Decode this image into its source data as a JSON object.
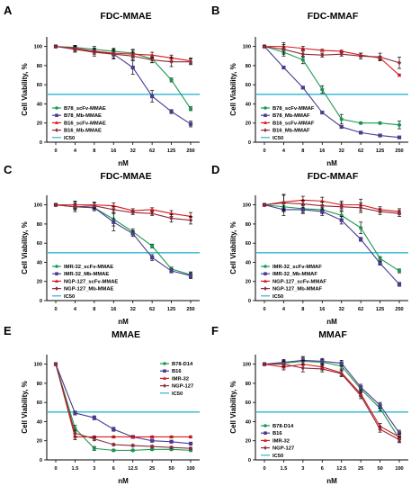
{
  "panels": [
    {
      "label": "A",
      "title": "FDC-MMAE",
      "xlabel": "nM",
      "ylabel": "Cell Viability, %",
      "chart_data": {
        "type": "line",
        "x": [
          "0",
          "4",
          "8",
          "16",
          "32",
          "62",
          "125",
          "250"
        ],
        "ylim": [
          0,
          110
        ],
        "yticks": [
          0,
          20,
          40,
          60,
          80,
          100
        ],
        "reference": {
          "name": "IC50",
          "value": 50,
          "color": "#29b6d2"
        },
        "legend_position": "bottom-left",
        "series": [
          {
            "name": "B78_scFv-MMAE",
            "color": "#1a9850",
            "values": [
              100,
              99,
              97,
              95,
              93,
              87,
              65,
              35
            ],
            "errors": [
              1,
              2,
              3,
              3,
              4,
              4,
              2,
              2
            ]
          },
          {
            "name": "B78_Mb-MMAE",
            "color": "#4b3b8f",
            "values": [
              100,
              98,
              95,
              92,
              78,
              48,
              32,
              19
            ],
            "errors": [
              1,
              2,
              3,
              4,
              7,
              6,
              2,
              3
            ]
          },
          {
            "name": "B16_scFv-MMAE",
            "color": "#d7191c",
            "values": [
              100,
              98,
              95,
              93,
              92,
              91,
              88,
              85
            ],
            "errors": [
              1,
              3,
              3,
              3,
              4,
              3,
              3,
              3
            ]
          },
          {
            "name": "B16_Mb-MMAE",
            "color": "#8e2b3a",
            "values": [
              100,
              97,
              94,
              92,
              90,
              86,
              84,
              84
            ],
            "errors": [
              1,
              3,
              4,
              5,
              4,
              3,
              5,
              3
            ]
          }
        ]
      }
    },
    {
      "label": "B",
      "title": "FDC-MMAF",
      "xlabel": "nM",
      "ylabel": "Cell Viability, %",
      "chart_data": {
        "type": "line",
        "x": [
          "0",
          "4",
          "8",
          "16",
          "32",
          "62",
          "125",
          "250"
        ],
        "ylim": [
          0,
          110
        ],
        "yticks": [
          0,
          20,
          40,
          60,
          80,
          100
        ],
        "reference": {
          "name": "IC50",
          "value": 50,
          "color": "#29b6d2"
        },
        "legend_position": "bottom-left",
        "series": [
          {
            "name": "B78_scFv-MMAF",
            "color": "#1a9850",
            "values": [
              100,
              94,
              86,
              55,
              24,
              20,
              20,
              18
            ],
            "errors": [
              1,
              4,
              4,
              4,
              5,
              1,
              1,
              4
            ]
          },
          {
            "name": "B78_Mb-MMAF",
            "color": "#4b3b8f",
            "values": [
              100,
              78,
              57,
              31,
              16,
              10,
              7,
              5
            ],
            "errors": [
              1,
              1,
              1,
              1,
              1,
              1,
              1,
              1
            ]
          },
          {
            "name": "B16_scFv-MMAF",
            "color": "#d7191c",
            "values": [
              100,
              100,
              98,
              96,
              95,
              91,
              88,
              70
            ],
            "errors": [
              1,
              4,
              2,
              1,
              1,
              2,
              2,
              1
            ]
          },
          {
            "name": "B16_Mb-MMAF",
            "color": "#8e2b3a",
            "values": [
              100,
              97,
              92,
              91,
              92,
              90,
              89,
              83
            ],
            "errors": [
              1,
              5,
              3,
              2,
              2,
              3,
              4,
              6
            ]
          }
        ]
      }
    },
    {
      "label": "C",
      "title": "FDC-MMAE",
      "xlabel": "nM",
      "ylabel": "Cell Viability, %",
      "chart_data": {
        "type": "line",
        "x": [
          "0",
          "4",
          "8",
          "16",
          "32",
          "62",
          "125",
          "250"
        ],
        "ylim": [
          0,
          110
        ],
        "yticks": [
          0,
          20,
          40,
          60,
          80,
          100
        ],
        "reference": {
          "name": "IC50",
          "value": 50,
          "color": "#29b6d2"
        },
        "legend_position": "bottom-left",
        "series": [
          {
            "name": "IMR-32_scFv-MMAE",
            "color": "#1a9850",
            "values": [
              100,
              98,
              97,
              85,
              72,
              57,
              33,
              27
            ],
            "errors": [
              1,
              3,
              3,
              7,
              3,
              2,
              2,
              3
            ]
          },
          {
            "name": "IMR-32_Mb-MMAE",
            "color": "#4b3b8f",
            "values": [
              100,
              98,
              97,
              82,
              70,
              45,
              31,
              26
            ],
            "errors": [
              1,
              3,
              3,
              9,
              3,
              3,
              2,
              3
            ]
          },
          {
            "name": "NGP-127_scFv-MMAE",
            "color": "#d7191c",
            "values": [
              100,
              100,
              100,
              99,
              94,
              95,
              91,
              88
            ],
            "errors": [
              1,
              4,
              3,
              3,
              2,
              2,
              3,
              4
            ]
          },
          {
            "name": "NGP-127_Mb-MMAE",
            "color": "#8e2b3a",
            "values": [
              100,
              98,
              99,
              95,
              92,
              91,
              86,
              84
            ],
            "errors": [
              1,
              5,
              3,
              3,
              2,
              2,
              4,
              4
            ]
          }
        ]
      }
    },
    {
      "label": "D",
      "title": "FDC-MMAF",
      "xlabel": "nM",
      "ylabel": "Cell Viability, %",
      "chart_data": {
        "type": "line",
        "x": [
          "0",
          "4",
          "8",
          "16",
          "32",
          "62",
          "125",
          "250"
        ],
        "ylim": [
          0,
          110
        ],
        "yticks": [
          0,
          20,
          40,
          60,
          80,
          100
        ],
        "reference": {
          "name": "IC50",
          "value": 50,
          "color": "#29b6d2"
        },
        "legend_position": "bottom-left",
        "series": [
          {
            "name": "IMR-32_scFv-MMAF",
            "color": "#1a9850",
            "values": [
              100,
              98,
              96,
              95,
              89,
              76,
              44,
              31
            ],
            "errors": [
              1,
              5,
              4,
              4,
              4,
              6,
              2,
              2
            ]
          },
          {
            "name": "IMR-32_Mb-MMAF",
            "color": "#4b3b8f",
            "values": [
              100,
              95,
              95,
              93,
              84,
              64,
              39,
              17
            ],
            "errors": [
              1,
              6,
              4,
              4,
              4,
              2,
              2,
              2
            ]
          },
          {
            "name": "NGP-127_scFv-MMAF",
            "color": "#d7191c",
            "values": [
              100,
              103,
              105,
              104,
              100,
              100,
              95,
              93
            ],
            "errors": [
              1,
              8,
              4,
              4,
              4,
              6,
              3,
              3
            ]
          },
          {
            "name": "NGP-127_Mb-MMAF",
            "color": "#8e2b3a",
            "values": [
              100,
              102,
              101,
              99,
              98,
              97,
              93,
              91
            ],
            "errors": [
              1,
              8,
              4,
              4,
              4,
              5,
              3,
              3
            ]
          }
        ]
      }
    },
    {
      "label": "E",
      "title": "MMAE",
      "xlabel": "nM",
      "ylabel": "Cell Viability, %",
      "chart_data": {
        "type": "line",
        "x": [
          "0",
          "1.5",
          "3",
          "6",
          "12.5",
          "25",
          "50",
          "100"
        ],
        "ylim": [
          0,
          110
        ],
        "yticks": [
          0,
          20,
          40,
          60,
          80,
          100
        ],
        "reference": {
          "name": "IC50",
          "value": 50,
          "color": "#29b6d2"
        },
        "legend_position": "top-right",
        "series": [
          {
            "name": "B78-D14",
            "color": "#1a9850",
            "values": [
              100,
              33,
              12,
              10,
              10,
              11,
              11,
              10
            ],
            "errors": [
              0,
              3,
              2,
              1,
              1,
              1,
              1,
              1
            ]
          },
          {
            "name": "B16",
            "color": "#4b3b8f",
            "values": [
              100,
              49,
              44,
              32,
              24,
              20,
              19,
              17
            ],
            "errors": [
              0,
              2,
              2,
              2,
              1,
              1,
              1,
              1
            ]
          },
          {
            "name": "IMR-32",
            "color": "#d7191c",
            "values": [
              100,
              24,
              24,
              24,
              24,
              24,
              24,
              24
            ],
            "errors": [
              0,
              3,
              1,
              1,
              1,
              1,
              1,
              1
            ]
          },
          {
            "name": "NGP-127",
            "color": "#8e2b3a",
            "values": [
              100,
              28,
              22,
              16,
              15,
              14,
              13,
              12
            ],
            "errors": [
              0,
              3,
              2,
              1,
              1,
              1,
              1,
              1
            ]
          }
        ]
      }
    },
    {
      "label": "F",
      "title": "MMAF",
      "xlabel": "nM",
      "ylabel": "Cell Viability, %",
      "chart_data": {
        "type": "line",
        "x": [
          "0",
          "1.5",
          "3",
          "6",
          "12.5",
          "25",
          "50",
          "100"
        ],
        "ylim": [
          0,
          110
        ],
        "yticks": [
          0,
          20,
          40,
          60,
          80,
          100
        ],
        "reference": {
          "name": "IC50",
          "value": 50,
          "color": "#29b6d2"
        },
        "legend_position": "bottom-left",
        "series": [
          {
            "name": "B78-D14",
            "color": "#1a9850",
            "values": [
              100,
              101,
              103,
              102,
              98,
              74,
              54,
              22
            ],
            "errors": [
              1,
              3,
              4,
              3,
              3,
              3,
              3,
              3
            ]
          },
          {
            "name": "B16",
            "color": "#4b3b8f",
            "values": [
              100,
              102,
              104,
              103,
              101,
              76,
              57,
              28
            ],
            "errors": [
              1,
              3,
              4,
              3,
              3,
              3,
              3,
              3
            ]
          },
          {
            "name": "IMR-32",
            "color": "#d7191c",
            "values": [
              100,
              97,
              100,
              97,
              91,
              69,
              35,
              24
            ],
            "errors": [
              1,
              3,
              4,
              3,
              3,
              3,
              3,
              3
            ]
          },
          {
            "name": "NGP-127",
            "color": "#8e2b3a",
            "values": [
              100,
              100,
              96,
              95,
              90,
              67,
              32,
              21
            ],
            "errors": [
              1,
              3,
              4,
              3,
              3,
              3,
              3,
              3
            ]
          }
        ]
      }
    }
  ]
}
